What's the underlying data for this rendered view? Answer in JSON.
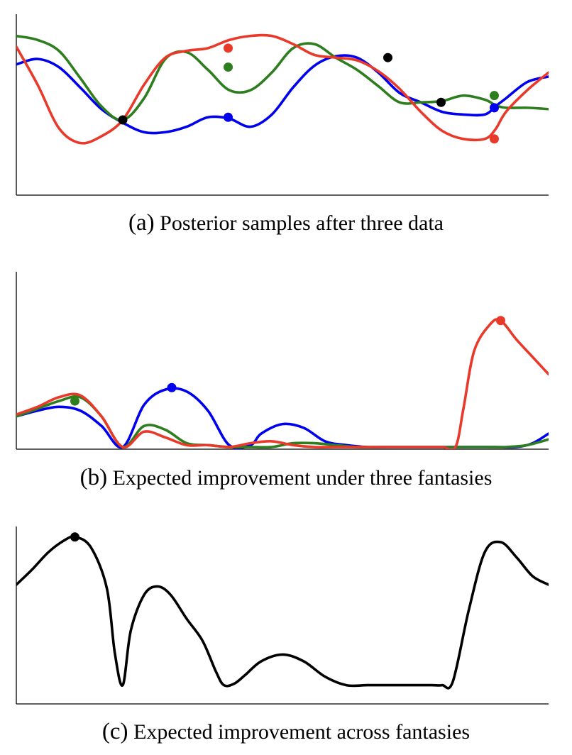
{
  "figure": {
    "captions": [
      {
        "tag": "(a)",
        "text": "Posterior samples after three data"
      },
      {
        "tag": "(b)",
        "text": "Expected improvement under three fantasies"
      },
      {
        "tag": "(c)",
        "text": "Expected improvement across fantasies"
      }
    ]
  },
  "colors": {
    "blue": "#0000ee",
    "green": "#2e7d1e",
    "red": "#e8392a",
    "black": "#000000",
    "axis": "#000000"
  },
  "chart_data": [
    {
      "type": "line",
      "title": "(a) Posterior samples after three data",
      "xlabel": "",
      "ylabel": "",
      "xlim": [
        0,
        1
      ],
      "ylim": [
        0,
        1
      ],
      "grid": false,
      "series": [
        {
          "color": "blue",
          "x": [
            0,
            0.04,
            0.08,
            0.12,
            0.16,
            0.2,
            0.24,
            0.28,
            0.32,
            0.36,
            0.4,
            0.44,
            0.48,
            0.52,
            0.56,
            0.6,
            0.64,
            0.68,
            0.72,
            0.76,
            0.8,
            0.84,
            0.88,
            0.9,
            0.92,
            0.96,
            1.0
          ],
          "y": [
            0.75,
            0.79,
            0.73,
            0.58,
            0.42,
            0.32,
            0.25,
            0.25,
            0.29,
            0.36,
            0.35,
            0.29,
            0.38,
            0.58,
            0.74,
            0.81,
            0.8,
            0.69,
            0.54,
            0.47,
            0.4,
            0.38,
            0.38,
            0.44,
            0.5,
            0.62,
            0.66
          ]
        },
        {
          "color": "green",
          "x": [
            0,
            0.04,
            0.08,
            0.12,
            0.16,
            0.2,
            0.24,
            0.28,
            0.32,
            0.36,
            0.4,
            0.44,
            0.48,
            0.52,
            0.56,
            0.6,
            0.64,
            0.68,
            0.72,
            0.76,
            0.8,
            0.84,
            0.88,
            0.9,
            0.92,
            0.96,
            1.0
          ],
          "y": [
            0.96,
            0.93,
            0.85,
            0.65,
            0.44,
            0.34,
            0.5,
            0.79,
            0.84,
            0.71,
            0.56,
            0.56,
            0.69,
            0.87,
            0.9,
            0.8,
            0.71,
            0.59,
            0.47,
            0.47,
            0.48,
            0.52,
            0.49,
            0.45,
            0.43,
            0.43,
            0.42
          ]
        },
        {
          "color": "red",
          "x": [
            0,
            0.04,
            0.08,
            0.12,
            0.16,
            0.2,
            0.24,
            0.28,
            0.32,
            0.36,
            0.4,
            0.44,
            0.48,
            0.52,
            0.56,
            0.6,
            0.64,
            0.68,
            0.72,
            0.76,
            0.8,
            0.84,
            0.88,
            0.9,
            0.92,
            0.96,
            1.0
          ],
          "y": [
            0.88,
            0.6,
            0.28,
            0.17,
            0.22,
            0.34,
            0.6,
            0.8,
            0.85,
            0.87,
            0.93,
            0.96,
            0.96,
            0.9,
            0.82,
            0.8,
            0.78,
            0.7,
            0.57,
            0.4,
            0.26,
            0.2,
            0.2,
            0.27,
            0.4,
            0.56,
            0.69
          ]
        }
      ],
      "points": [
        {
          "x": 0.2,
          "y": 0.34,
          "color": "black"
        },
        {
          "x": 0.698,
          "y": 0.8,
          "color": "black"
        },
        {
          "x": 0.798,
          "y": 0.47,
          "color": "black"
        },
        {
          "x": 0.398,
          "y": 0.87,
          "color": "red"
        },
        {
          "x": 0.398,
          "y": 0.73,
          "color": "green"
        },
        {
          "x": 0.398,
          "y": 0.36,
          "color": "blue"
        },
        {
          "x": 0.898,
          "y": 0.52,
          "color": "green"
        },
        {
          "x": 0.898,
          "y": 0.43,
          "color": "blue"
        },
        {
          "x": 0.898,
          "y": 0.2,
          "color": "red"
        }
      ]
    },
    {
      "type": "line",
      "title": "(b) Expected improvement under three fantasies",
      "xlabel": "",
      "ylabel": "",
      "xlim": [
        0,
        1
      ],
      "ylim": [
        0,
        1
      ],
      "grid": false,
      "series": [
        {
          "color": "blue",
          "x": [
            0,
            0.04,
            0.08,
            0.12,
            0.16,
            0.2,
            0.24,
            0.28,
            0.32,
            0.36,
            0.4,
            0.44,
            0.46,
            0.5,
            0.54,
            0.58,
            0.62,
            0.66,
            0.7,
            0.74,
            0.78,
            0.82,
            0.86,
            0.9,
            0.94,
            0.97,
            1.0
          ],
          "y": [
            0.16,
            0.19,
            0.21,
            0.19,
            0.11,
            0.0,
            0.22,
            0.3,
            0.29,
            0.19,
            0.01,
            0.01,
            0.07,
            0.12,
            0.1,
            0.03,
            0.01,
            0.0,
            0.0,
            0.0,
            0.0,
            0.0,
            0.0,
            0.0,
            0.0,
            0.02,
            0.07
          ]
        },
        {
          "color": "green",
          "x": [
            0,
            0.04,
            0.08,
            0.12,
            0.16,
            0.2,
            0.24,
            0.28,
            0.32,
            0.36,
            0.4,
            0.44,
            0.48,
            0.52,
            0.56,
            0.6,
            0.64,
            0.68,
            0.72,
            0.76,
            0.8,
            0.84,
            0.88,
            0.92,
            0.96,
            1.0
          ],
          "y": [
            0.16,
            0.2,
            0.24,
            0.26,
            0.16,
            0.0,
            0.11,
            0.09,
            0.02,
            0.01,
            0.0,
            0.0,
            0.0,
            0.02,
            0.02,
            0.01,
            0.0,
            0.0,
            0.0,
            0.0,
            0.0,
            0.0,
            0.0,
            0.0,
            0.01,
            0.04
          ]
        },
        {
          "color": "red",
          "x": [
            0,
            0.04,
            0.08,
            0.12,
            0.16,
            0.2,
            0.24,
            0.28,
            0.32,
            0.36,
            0.4,
            0.44,
            0.48,
            0.52,
            0.56,
            0.6,
            0.64,
            0.68,
            0.72,
            0.76,
            0.8,
            0.825,
            0.84,
            0.86,
            0.89,
            0.91,
            0.94,
            0.97,
            1.0
          ],
          "y": [
            0.17,
            0.21,
            0.26,
            0.27,
            0.16,
            0.0,
            0.08,
            0.05,
            0.01,
            0.01,
            0.0,
            0.02,
            0.03,
            0.01,
            0.0,
            0.0,
            0.0,
            0.0,
            0.0,
            0.0,
            0.0,
            0.0,
            0.2,
            0.5,
            0.64,
            0.66,
            0.56,
            0.47,
            0.38
          ]
        }
      ],
      "points": [
        {
          "x": 0.11,
          "y": 0.24,
          "color": "green"
        },
        {
          "x": 0.292,
          "y": 0.31,
          "color": "blue"
        },
        {
          "x": 0.91,
          "y": 0.66,
          "color": "red"
        }
      ]
    },
    {
      "type": "line",
      "title": "(c) Expected improvement across fantasies",
      "xlabel": "",
      "ylabel": "",
      "xlim": [
        0,
        1
      ],
      "ylim": [
        0,
        1
      ],
      "grid": false,
      "series": [
        {
          "color": "black",
          "x": [
            0,
            0.03,
            0.06,
            0.09,
            0.11,
            0.14,
            0.17,
            0.185,
            0.2,
            0.215,
            0.24,
            0.265,
            0.29,
            0.32,
            0.35,
            0.375,
            0.39,
            0.41,
            0.43,
            0.46,
            0.5,
            0.54,
            0.58,
            0.62,
            0.66,
            0.7,
            0.74,
            0.78,
            0.8,
            0.82,
            0.85,
            0.88,
            0.91,
            0.94,
            0.97,
            1.0
          ],
          "y": [
            0.65,
            0.74,
            0.84,
            0.91,
            0.93,
            0.87,
            0.63,
            0.25,
            0.06,
            0.38,
            0.59,
            0.64,
            0.59,
            0.45,
            0.32,
            0.14,
            0.06,
            0.07,
            0.12,
            0.2,
            0.24,
            0.2,
            0.11,
            0.06,
            0.06,
            0.06,
            0.06,
            0.06,
            0.06,
            0.08,
            0.5,
            0.84,
            0.9,
            0.81,
            0.7,
            0.65
          ]
        }
      ],
      "points": [
        {
          "x": 0.11,
          "y": 0.93,
          "color": "black"
        }
      ]
    }
  ]
}
